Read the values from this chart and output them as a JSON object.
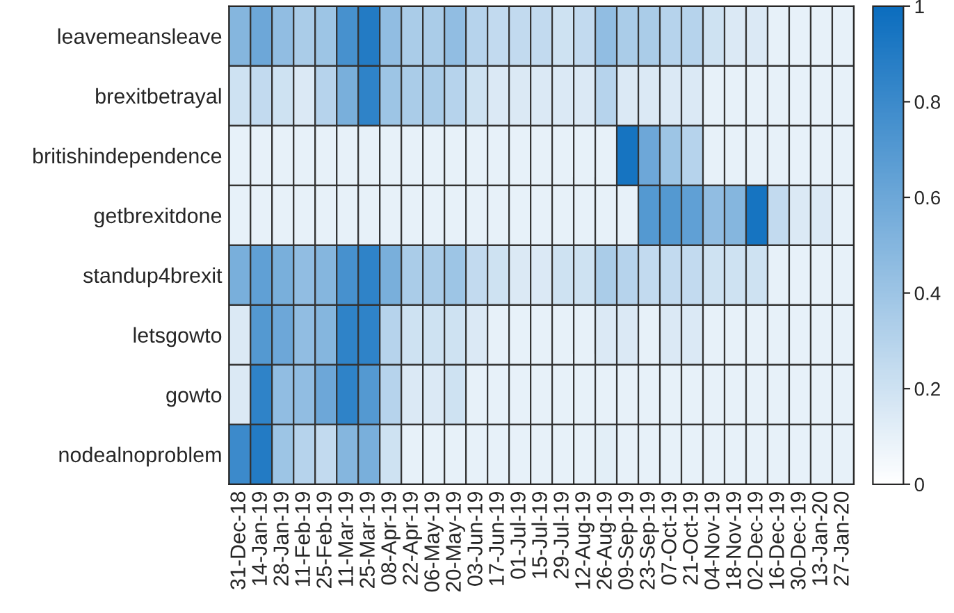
{
  "chart_data": {
    "type": "heatmap",
    "categories": [
      "31-Dec-18",
      "14-Jan-19",
      "28-Jan-19",
      "11-Feb-19",
      "25-Feb-19",
      "11-Mar-19",
      "25-Mar-19",
      "08-Apr-19",
      "22-Apr-19",
      "06-May-19",
      "20-May-19",
      "03-Jun-19",
      "17-Jun-19",
      "01-Jul-19",
      "15-Jul-19",
      "29-Jul-19",
      "12-Aug-19",
      "26-Aug-19",
      "09-Sep-19",
      "23-Sep-19",
      "07-Oct-19",
      "21-Oct-19",
      "04-Nov-19",
      "18-Nov-19",
      "02-Dec-19",
      "16-Dec-19",
      "30-Dec-19",
      "13-Jan-20",
      "27-Jan-20"
    ],
    "y_categories": [
      "leavemeansleave",
      "brexitbetrayal",
      "britishindependence",
      "getbrexitdone",
      "standup4brexit",
      "letsgowto",
      "gowto",
      "nodealnoproblem"
    ],
    "cells": [
      [
        0.5,
        0.6,
        0.45,
        0.35,
        0.4,
        0.75,
        0.9,
        0.45,
        0.35,
        0.35,
        0.45,
        0.3,
        0.25,
        0.25,
        0.25,
        0.2,
        0.25,
        0.45,
        0.35,
        0.35,
        0.3,
        0.3,
        0.2,
        0.15,
        0.15,
        0.1,
        0.1,
        0.1,
        0.1
      ],
      [
        0.2,
        0.25,
        0.2,
        0.15,
        0.3,
        0.55,
        0.85,
        0.4,
        0.35,
        0.35,
        0.3,
        0.2,
        0.15,
        0.15,
        0.15,
        0.15,
        0.15,
        0.3,
        0.15,
        0.15,
        0.15,
        0.15,
        0.1,
        0.1,
        0.1,
        0.1,
        0.1,
        0.1,
        0.1
      ],
      [
        0.1,
        0.1,
        0.1,
        0.1,
        0.1,
        0.1,
        0.1,
        0.1,
        0.1,
        0.1,
        0.1,
        0.1,
        0.1,
        0.1,
        0.1,
        0.1,
        0.1,
        0.1,
        0.95,
        0.6,
        0.4,
        0.3,
        0.1,
        0.1,
        0.1,
        0.1,
        0.1,
        0.1,
        0.1
      ],
      [
        0.1,
        0.1,
        0.1,
        0.1,
        0.1,
        0.1,
        0.1,
        0.1,
        0.1,
        0.1,
        0.1,
        0.1,
        0.1,
        0.1,
        0.1,
        0.1,
        0.1,
        0.1,
        0.1,
        0.7,
        0.7,
        0.65,
        0.45,
        0.5,
        0.95,
        0.25,
        0.15,
        0.15,
        0.1
      ],
      [
        0.55,
        0.65,
        0.55,
        0.45,
        0.5,
        0.75,
        0.85,
        0.55,
        0.35,
        0.35,
        0.4,
        0.25,
        0.2,
        0.15,
        0.15,
        0.2,
        0.2,
        0.35,
        0.3,
        0.25,
        0.25,
        0.25,
        0.2,
        0.2,
        0.2,
        0.1,
        0.1,
        0.1,
        0.1
      ],
      [
        0.15,
        0.7,
        0.6,
        0.45,
        0.5,
        0.85,
        0.85,
        0.3,
        0.2,
        0.2,
        0.2,
        0.15,
        0.1,
        0.1,
        0.1,
        0.1,
        0.1,
        0.15,
        0.15,
        0.1,
        0.15,
        0.15,
        0.1,
        0.1,
        0.1,
        0.1,
        0.1,
        0.1,
        0.1
      ],
      [
        0.15,
        0.85,
        0.45,
        0.45,
        0.6,
        0.85,
        0.7,
        0.3,
        0.15,
        0.15,
        0.2,
        0.1,
        0.1,
        0.1,
        0.1,
        0.1,
        0.1,
        0.1,
        0.1,
        0.1,
        0.1,
        0.1,
        0.1,
        0.1,
        0.1,
        0.1,
        0.1,
        0.1,
        0.1
      ],
      [
        0.8,
        0.9,
        0.4,
        0.3,
        0.25,
        0.5,
        0.55,
        0.2,
        0.1,
        0.1,
        0.1,
        0.1,
        0.1,
        0.1,
        0.1,
        0.1,
        0.1,
        0.12,
        0.1,
        0.1,
        0.1,
        0.1,
        0.1,
        0.1,
        0.1,
        0.1,
        0.1,
        0.1,
        0.1
      ]
    ],
    "clim": [
      0,
      1
    ],
    "cticks": [
      0,
      0.2,
      0.4,
      0.6,
      0.8,
      1
    ],
    "colors": [
      "#ffffff",
      "#0b6dbe"
    ]
  }
}
